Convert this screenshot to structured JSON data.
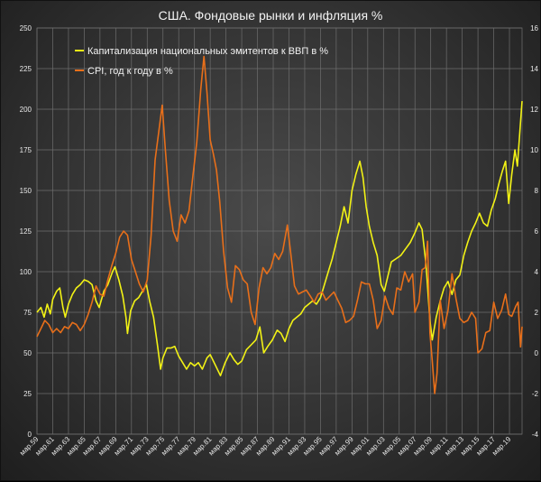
{
  "chart_data": {
    "type": "line",
    "title": "США. Фондовые рынки и инфляция %",
    "x_tick_labels": [
      "мар.59",
      "мар.61",
      "мар.63",
      "мар.65",
      "мар.67",
      "мар.69",
      "мар.71",
      "мар.73",
      "мар.75",
      "мар.77",
      "мар.79",
      "мар.81",
      "мар.83",
      "мар.85",
      "мар.87",
      "мар.89",
      "мар.91",
      "мар.93",
      "мар.95",
      "мар.97",
      "мар.99",
      "мар.01",
      "мар.03",
      "мар.05",
      "мар.07",
      "мар.09",
      "мар.11",
      "мар.13",
      "мар.15",
      "мар.17",
      "мар.19"
    ],
    "x_range": [
      1959.0,
      2020.6
    ],
    "y_left": {
      "min": 0,
      "max": 250,
      "ticks": [
        0,
        25,
        50,
        75,
        100,
        125,
        150,
        175,
        200,
        225,
        250
      ]
    },
    "y_right": {
      "min": -4,
      "max": 16,
      "ticks": [
        -4,
        -2,
        0,
        2,
        4,
        6,
        8,
        10,
        12,
        14,
        16
      ]
    },
    "grid": true,
    "legend_position": "top-left",
    "series": [
      {
        "name": "Капитализация национальных эмитентов к ВВП в %",
        "axis": "left",
        "color": "#f2f215",
        "points": [
          [
            1959.0,
            75
          ],
          [
            1959.5,
            78
          ],
          [
            1959.9,
            72
          ],
          [
            1960.3,
            80
          ],
          [
            1960.7,
            74
          ],
          [
            1961.0,
            83
          ],
          [
            1961.5,
            88
          ],
          [
            1961.9,
            90
          ],
          [
            1962.3,
            78
          ],
          [
            1962.6,
            72
          ],
          [
            1963.0,
            80
          ],
          [
            1963.5,
            86
          ],
          [
            1964.0,
            90
          ],
          [
            1964.5,
            92
          ],
          [
            1965.0,
            95
          ],
          [
            1965.5,
            94
          ],
          [
            1966.0,
            92
          ],
          [
            1966.5,
            82
          ],
          [
            1966.9,
            78
          ],
          [
            1967.5,
            88
          ],
          [
            1968.0,
            92
          ],
          [
            1968.6,
            100
          ],
          [
            1968.9,
            103
          ],
          [
            1969.4,
            95
          ],
          [
            1969.9,
            85
          ],
          [
            1970.3,
            72
          ],
          [
            1970.5,
            62
          ],
          [
            1970.9,
            76
          ],
          [
            1971.4,
            82
          ],
          [
            1971.9,
            84
          ],
          [
            1972.4,
            88
          ],
          [
            1972.9,
            92
          ],
          [
            1973.3,
            82
          ],
          [
            1973.8,
            72
          ],
          [
            1974.3,
            55
          ],
          [
            1974.7,
            40
          ],
          [
            1975.0,
            47
          ],
          [
            1975.5,
            53
          ],
          [
            1976.0,
            53
          ],
          [
            1976.5,
            54
          ],
          [
            1977.0,
            48
          ],
          [
            1977.5,
            44
          ],
          [
            1978.0,
            40
          ],
          [
            1978.5,
            44
          ],
          [
            1979.0,
            42
          ],
          [
            1979.5,
            44
          ],
          [
            1980.0,
            40
          ],
          [
            1980.6,
            47
          ],
          [
            1981.0,
            49
          ],
          [
            1981.6,
            43
          ],
          [
            1982.3,
            36
          ],
          [
            1982.9,
            44
          ],
          [
            1983.5,
            50
          ],
          [
            1984.0,
            46
          ],
          [
            1984.5,
            43
          ],
          [
            1985.0,
            45
          ],
          [
            1985.6,
            52
          ],
          [
            1986.2,
            55
          ],
          [
            1986.8,
            58
          ],
          [
            1987.3,
            66
          ],
          [
            1987.8,
            50
          ],
          [
            1988.3,
            54
          ],
          [
            1988.9,
            58
          ],
          [
            1989.5,
            64
          ],
          [
            1990.0,
            62
          ],
          [
            1990.5,
            57
          ],
          [
            1991.0,
            65
          ],
          [
            1991.5,
            70
          ],
          [
            1992.0,
            72
          ],
          [
            1992.5,
            74
          ],
          [
            1993.0,
            78
          ],
          [
            1993.5,
            80
          ],
          [
            1994.0,
            82
          ],
          [
            1994.5,
            80
          ],
          [
            1995.0,
            84
          ],
          [
            1995.5,
            92
          ],
          [
            1996.0,
            100
          ],
          [
            1996.5,
            108
          ],
          [
            1997.0,
            118
          ],
          [
            1997.5,
            128
          ],
          [
            1998.0,
            140
          ],
          [
            1998.5,
            130
          ],
          [
            1999.0,
            150
          ],
          [
            1999.5,
            160
          ],
          [
            2000.0,
            168
          ],
          [
            2000.4,
            158
          ],
          [
            2000.8,
            140
          ],
          [
            2001.2,
            128
          ],
          [
            2001.7,
            118
          ],
          [
            2002.2,
            110
          ],
          [
            2002.7,
            92
          ],
          [
            2003.1,
            88
          ],
          [
            2003.6,
            98
          ],
          [
            2004.0,
            106
          ],
          [
            2004.6,
            108
          ],
          [
            2005.2,
            110
          ],
          [
            2005.8,
            114
          ],
          [
            2006.4,
            118
          ],
          [
            2007.0,
            124
          ],
          [
            2007.5,
            130
          ],
          [
            2007.9,
            126
          ],
          [
            2008.4,
            105
          ],
          [
            2008.9,
            70
          ],
          [
            2009.2,
            58
          ],
          [
            2009.7,
            72
          ],
          [
            2010.2,
            82
          ],
          [
            2010.7,
            90
          ],
          [
            2011.2,
            94
          ],
          [
            2011.7,
            86
          ],
          [
            2012.2,
            95
          ],
          [
            2012.7,
            98
          ],
          [
            2013.2,
            110
          ],
          [
            2013.7,
            118
          ],
          [
            2014.2,
            125
          ],
          [
            2014.7,
            130
          ],
          [
            2015.2,
            136
          ],
          [
            2015.7,
            130
          ],
          [
            2016.2,
            128
          ],
          [
            2016.7,
            138
          ],
          [
            2017.2,
            145
          ],
          [
            2017.7,
            155
          ],
          [
            2018.1,
            162
          ],
          [
            2018.5,
            168
          ],
          [
            2018.9,
            142
          ],
          [
            2019.3,
            160
          ],
          [
            2019.7,
            175
          ],
          [
            2020.0,
            165
          ],
          [
            2020.3,
            185
          ],
          [
            2020.6,
            205
          ]
        ]
      },
      {
        "name": "CPI, год к году в %",
        "axis": "right",
        "color": "#e86f1a",
        "points": [
          [
            1959.0,
            0.8
          ],
          [
            1959.5,
            1.2
          ],
          [
            1960.0,
            1.6
          ],
          [
            1960.5,
            1.4
          ],
          [
            1961.0,
            1.0
          ],
          [
            1961.5,
            1.2
          ],
          [
            1962.0,
            1.0
          ],
          [
            1962.5,
            1.3
          ],
          [
            1963.0,
            1.2
          ],
          [
            1963.5,
            1.5
          ],
          [
            1964.0,
            1.4
          ],
          [
            1964.5,
            1.1
          ],
          [
            1965.0,
            1.4
          ],
          [
            1965.5,
            1.9
          ],
          [
            1966.0,
            2.5
          ],
          [
            1966.5,
            3.3
          ],
          [
            1967.0,
            2.9
          ],
          [
            1967.5,
            2.8
          ],
          [
            1968.0,
            3.6
          ],
          [
            1968.5,
            4.3
          ],
          [
            1969.0,
            4.9
          ],
          [
            1969.5,
            5.7
          ],
          [
            1970.0,
            6.0
          ],
          [
            1970.5,
            5.8
          ],
          [
            1971.0,
            4.6
          ],
          [
            1971.5,
            4.0
          ],
          [
            1972.0,
            3.4
          ],
          [
            1972.5,
            3.0
          ],
          [
            1973.0,
            3.6
          ],
          [
            1973.5,
            5.8
          ],
          [
            1974.0,
            9.5
          ],
          [
            1974.5,
            11.0
          ],
          [
            1974.9,
            12.2
          ],
          [
            1975.3,
            10.0
          ],
          [
            1975.8,
            7.5
          ],
          [
            1976.3,
            6.0
          ],
          [
            1976.8,
            5.5
          ],
          [
            1977.3,
            6.8
          ],
          [
            1977.8,
            6.4
          ],
          [
            1978.3,
            7.0
          ],
          [
            1978.8,
            8.7
          ],
          [
            1979.3,
            10.4
          ],
          [
            1979.8,
            13.0
          ],
          [
            1980.2,
            14.6
          ],
          [
            1980.6,
            12.8
          ],
          [
            1981.0,
            10.5
          ],
          [
            1981.4,
            9.8
          ],
          [
            1981.8,
            9.0
          ],
          [
            1982.2,
            7.5
          ],
          [
            1982.7,
            5.0
          ],
          [
            1983.2,
            3.2
          ],
          [
            1983.7,
            2.5
          ],
          [
            1984.2,
            4.3
          ],
          [
            1984.7,
            4.1
          ],
          [
            1985.2,
            3.6
          ],
          [
            1985.7,
            3.4
          ],
          [
            1986.2,
            2.0
          ],
          [
            1986.7,
            1.4
          ],
          [
            1987.2,
            3.2
          ],
          [
            1987.7,
            4.2
          ],
          [
            1988.2,
            3.9
          ],
          [
            1988.7,
            4.2
          ],
          [
            1989.2,
            4.9
          ],
          [
            1989.7,
            4.6
          ],
          [
            1990.2,
            5.0
          ],
          [
            1990.8,
            6.3
          ],
          [
            1991.2,
            5.0
          ],
          [
            1991.7,
            3.3
          ],
          [
            1992.2,
            2.9
          ],
          [
            1992.7,
            3.0
          ],
          [
            1993.2,
            3.1
          ],
          [
            1993.7,
            2.8
          ],
          [
            1994.2,
            2.5
          ],
          [
            1994.7,
            2.9
          ],
          [
            1995.2,
            3.0
          ],
          [
            1995.7,
            2.6
          ],
          [
            1996.2,
            2.8
          ],
          [
            1996.7,
            3.0
          ],
          [
            1997.2,
            2.6
          ],
          [
            1997.7,
            2.2
          ],
          [
            1998.2,
            1.5
          ],
          [
            1998.7,
            1.6
          ],
          [
            1999.2,
            1.8
          ],
          [
            1999.7,
            2.6
          ],
          [
            2000.2,
            3.5
          ],
          [
            2000.7,
            3.4
          ],
          [
            2001.2,
            3.4
          ],
          [
            2001.7,
            2.6
          ],
          [
            2002.2,
            1.2
          ],
          [
            2002.7,
            1.6
          ],
          [
            2003.2,
            2.8
          ],
          [
            2003.7,
            2.2
          ],
          [
            2004.2,
            1.9
          ],
          [
            2004.7,
            3.2
          ],
          [
            2005.2,
            3.1
          ],
          [
            2005.7,
            4.0
          ],
          [
            2006.2,
            3.5
          ],
          [
            2006.7,
            3.9
          ],
          [
            2007.0,
            2.0
          ],
          [
            2007.5,
            2.5
          ],
          [
            2007.9,
            4.1
          ],
          [
            2008.3,
            4.2
          ],
          [
            2008.6,
            5.5
          ],
          [
            2008.9,
            1.0
          ],
          [
            2009.2,
            -0.4
          ],
          [
            2009.5,
            -2.0
          ],
          [
            2009.8,
            -1.0
          ],
          [
            2010.2,
            2.6
          ],
          [
            2010.7,
            1.2
          ],
          [
            2011.2,
            2.1
          ],
          [
            2011.7,
            3.9
          ],
          [
            2012.2,
            2.7
          ],
          [
            2012.7,
            1.7
          ],
          [
            2013.2,
            1.5
          ],
          [
            2013.7,
            1.6
          ],
          [
            2014.2,
            2.0
          ],
          [
            2014.7,
            1.7
          ],
          [
            2015.0,
            0.0
          ],
          [
            2015.5,
            0.2
          ],
          [
            2016.0,
            1.0
          ],
          [
            2016.5,
            1.1
          ],
          [
            2017.0,
            2.5
          ],
          [
            2017.5,
            1.7
          ],
          [
            2018.0,
            2.1
          ],
          [
            2018.5,
            2.9
          ],
          [
            2018.9,
            1.9
          ],
          [
            2019.3,
            1.8
          ],
          [
            2019.8,
            2.3
          ],
          [
            2020.1,
            2.5
          ],
          [
            2020.4,
            0.3
          ],
          [
            2020.6,
            1.3
          ]
        ]
      }
    ]
  }
}
